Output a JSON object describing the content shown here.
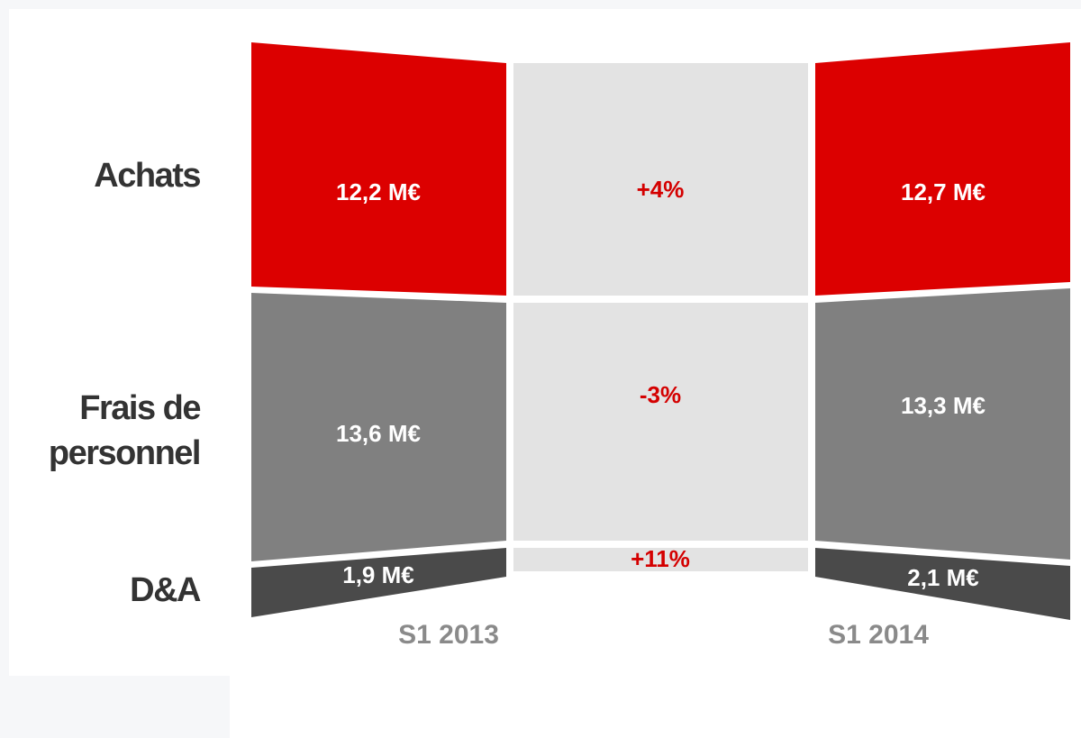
{
  "rows": [
    {
      "label": [
        "Achats"
      ],
      "s1_2013": "12,2 M€",
      "change": "+4%",
      "s1_2014": "12,7 M€"
    },
    {
      "label": [
        "Frais de",
        "personnel"
      ],
      "s1_2013": "13,6 M€",
      "change": "-3%",
      "s1_2014": "13,3 M€"
    },
    {
      "label": [
        "D&A"
      ],
      "s1_2013": "1,9 M€",
      "change": "+11%",
      "s1_2014": "2,1 M€"
    }
  ],
  "columns": [
    "S1 2013",
    "S1 2014"
  ]
}
